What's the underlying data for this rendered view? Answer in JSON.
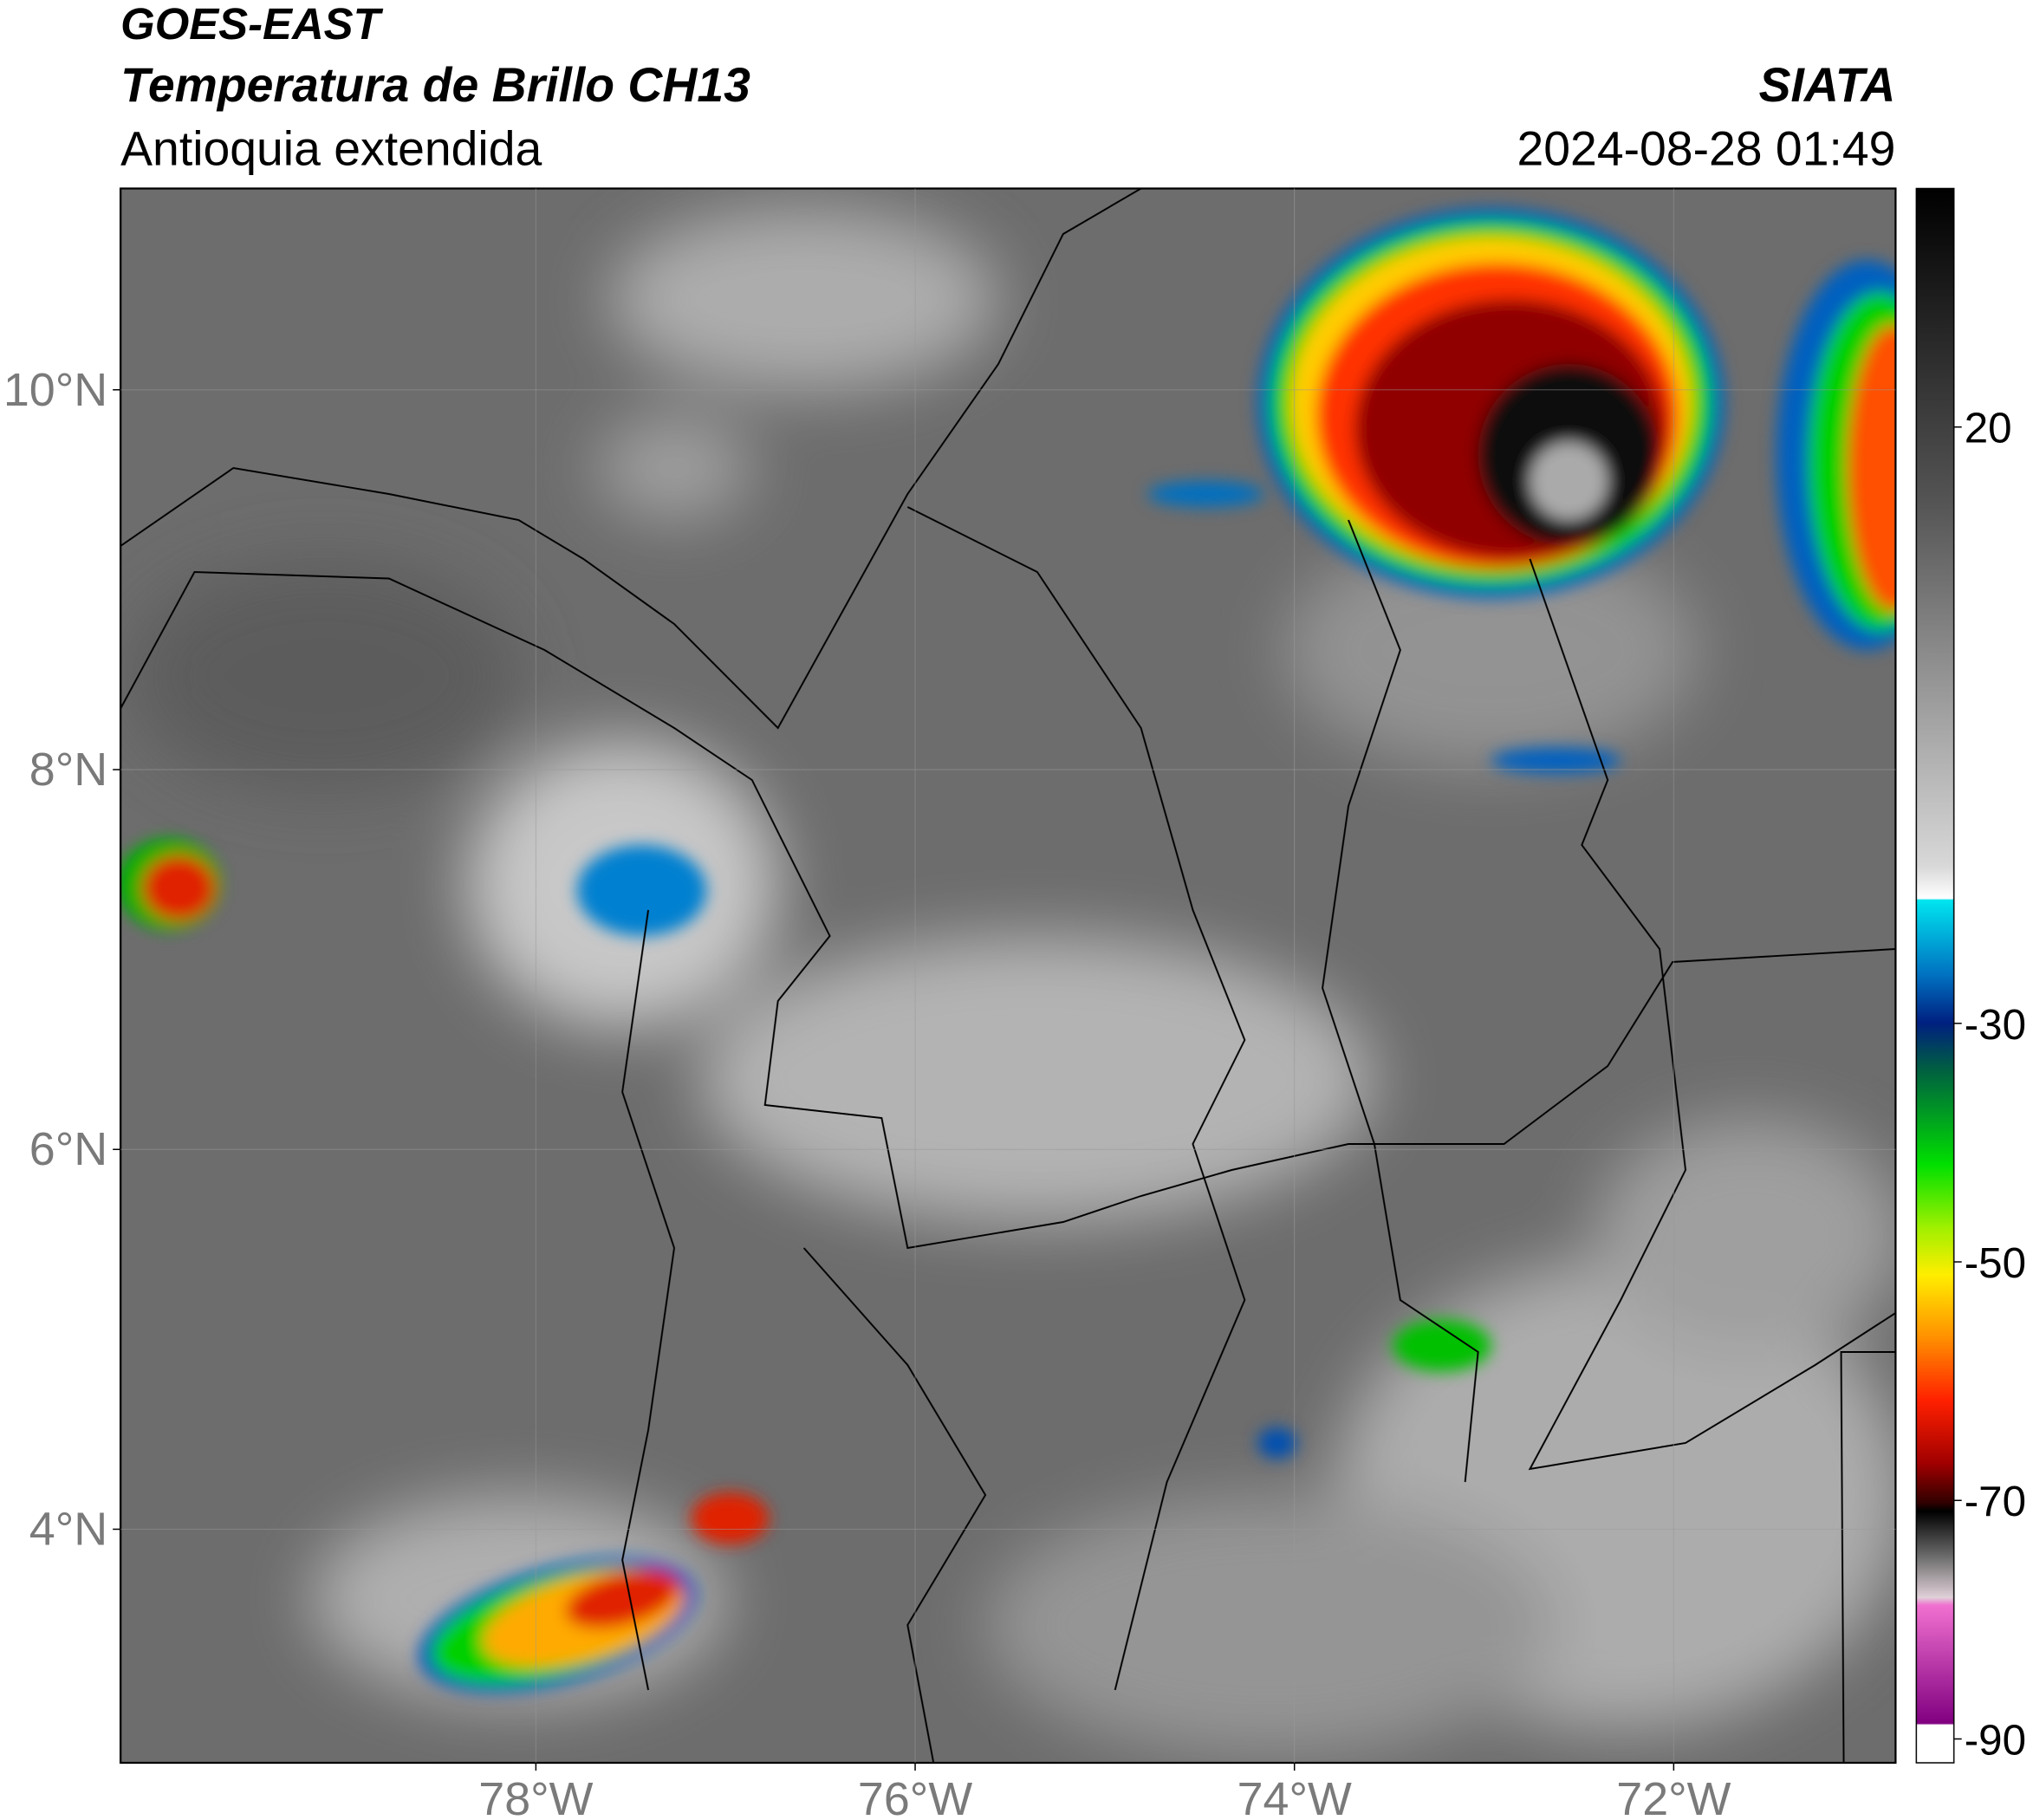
{
  "chart_data": {
    "type": "map",
    "title": "GOES-EAST",
    "subtitle": "Temperatura de Brillo CH13",
    "region": "Antioquia extendida",
    "source": "SIATA",
    "datetime": "2024-08-28 01:49",
    "xlim": [
      -80.19,
      -70.83
    ],
    "ylim": [
      2.77,
      11.06
    ],
    "xticks": [
      {
        "value": -78,
        "label": "78°W"
      },
      {
        "value": -76,
        "label": "76°W"
      },
      {
        "value": -74,
        "label": "74°W"
      },
      {
        "value": -72,
        "label": "72°W"
      }
    ],
    "yticks": [
      {
        "value": 10,
        "label": "10°N"
      },
      {
        "value": 8,
        "label": "8°N"
      },
      {
        "value": 6,
        "label": "6°N"
      },
      {
        "value": 4,
        "label": "4°N"
      }
    ],
    "colorbar": {
      "lim": [
        -92,
        40
      ],
      "ticks": [
        20,
        -30,
        -50,
        -70,
        -90
      ]
    },
    "grid": true
  }
}
